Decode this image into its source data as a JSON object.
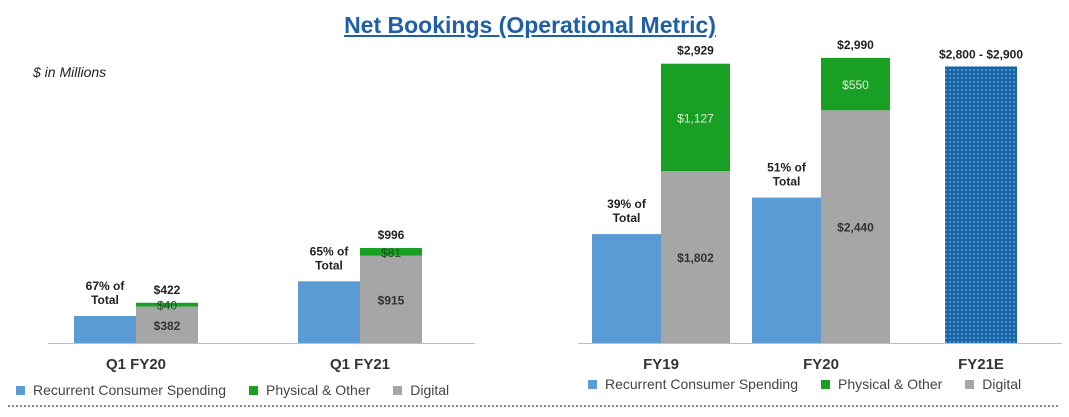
{
  "title": "Net Bookings (Operational Metric)",
  "units_note": "$ in Millions",
  "colors": {
    "recurrent": "#5b9bd5",
    "physical": "#19a024",
    "digital": "#a6a6a6",
    "estimate": "#1565a8",
    "title": "#1f5fa8"
  },
  "legend": [
    {
      "name": "Recurrent Consumer Spending",
      "color": "#5b9bd5"
    },
    {
      "name": "Physical & Other",
      "color": "#19a024"
    },
    {
      "name": "Digital",
      "color": "#a6a6a6"
    }
  ],
  "chart_data": [
    {
      "type": "bar",
      "categories": [
        "Q1 FY20",
        "Q1 FY21"
      ],
      "series": [
        {
          "name": "Recurrent Consumer Spending",
          "values": [
            283,
            647
          ]
        },
        {
          "name": "Digital",
          "values": [
            382,
            915
          ]
        },
        {
          "name": "Physical & Other",
          "values": [
            40,
            81
          ]
        }
      ],
      "digital_labels": [
        "$382",
        "$915"
      ],
      "physical_labels": [
        "$40",
        "$81"
      ],
      "totals": [
        422,
        996
      ],
      "total_labels": [
        "$422",
        "$996"
      ],
      "recurrent_labels": [
        "67% of\nTotal",
        "65% of\nTotal"
      ],
      "ylim": [
        0,
        3200
      ]
    },
    {
      "type": "bar",
      "categories": [
        "FY19",
        "FY20",
        "FY21E"
      ],
      "series": [
        {
          "name": "Recurrent Consumer Spending",
          "values": [
            1142,
            1525,
            null
          ]
        },
        {
          "name": "Digital",
          "values": [
            1802,
            2440,
            null
          ]
        },
        {
          "name": "Physical & Other",
          "values": [
            1127,
            550,
            null
          ]
        }
      ],
      "digital_labels": [
        "$1,802",
        "$2,440",
        ""
      ],
      "physical_labels": [
        "$1,127",
        "$550",
        ""
      ],
      "totals": [
        2929,
        2990,
        2900
      ],
      "total_labels": [
        "$2,929",
        "$2,990",
        "$2,800 - $2,900"
      ],
      "recurrent_labels": [
        "39% of\nTotal",
        "51% of\nTotal",
        ""
      ],
      "estimate": {
        "category": "FY21E",
        "low": 2800,
        "high": 2900
      },
      "ylim": [
        0,
        3200
      ]
    }
  ]
}
